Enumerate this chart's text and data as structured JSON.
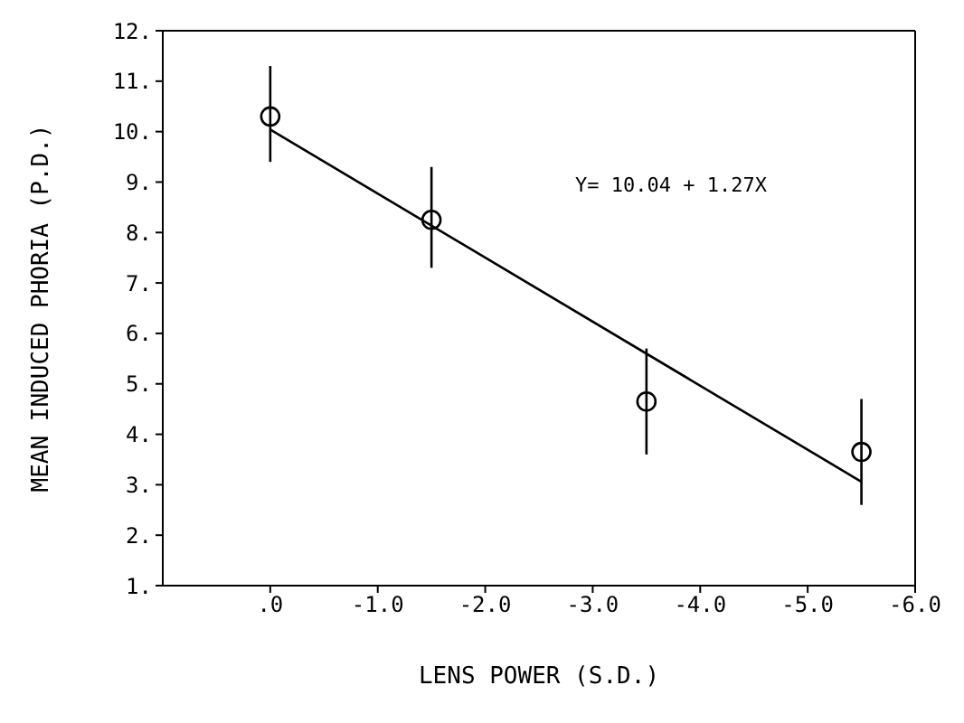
{
  "chart_data": {
    "type": "scatter",
    "xlabel": "LENS POWER (S.D.)",
    "ylabel": "MEAN INDUCED PHORIA (P.D.)",
    "x": [
      0,
      -1.5,
      -3.5,
      -5.5
    ],
    "series": [
      {
        "color": "#000000",
        "marker": "circle",
        "values": [
          10.3,
          8.25,
          4.65,
          3.65
        ],
        "errors": [
          [
            9.4,
            11.3
          ],
          [
            7.3,
            9.3
          ],
          [
            3.6,
            5.7
          ],
          [
            2.6,
            4.7
          ]
        ]
      },
      {
        "type": "line",
        "color": "#000000",
        "x": [
          0,
          -5.5
        ],
        "values": [
          10.04,
          3.06
        ],
        "marker": "none",
        "line_style": "solid"
      }
    ],
    "xlim": [
      1.0,
      -6.0
    ],
    "xticks": [
      {
        "value": 0,
        "label": ".0"
      },
      {
        "value": -1,
        "label": "-1.0"
      },
      {
        "value": -2,
        "label": "-2.0"
      },
      {
        "value": -3,
        "label": "-3.0"
      },
      {
        "value": -4,
        "label": "-4.0"
      },
      {
        "value": -5,
        "label": "-5.0"
      },
      {
        "value": -6,
        "label": "-6.0"
      }
    ],
    "ylim": [
      1,
      12
    ],
    "yticks": [
      {
        "value": 1,
        "label": "1."
      },
      {
        "value": 2,
        "label": "2."
      },
      {
        "value": 3,
        "label": "3."
      },
      {
        "value": 4,
        "label": "4."
      },
      {
        "value": 5,
        "label": "5."
      },
      {
        "value": 6,
        "label": "6."
      },
      {
        "value": 7,
        "label": "7."
      },
      {
        "value": 8,
        "label": "8."
      },
      {
        "value": 9,
        "label": "9."
      },
      {
        "value": 10,
        "label": "10."
      },
      {
        "value": 11,
        "label": "11."
      },
      {
        "value": 12,
        "label": "12."
      }
    ],
    "annotations": [
      "Y= 10.04 + 1.27X"
    ]
  }
}
